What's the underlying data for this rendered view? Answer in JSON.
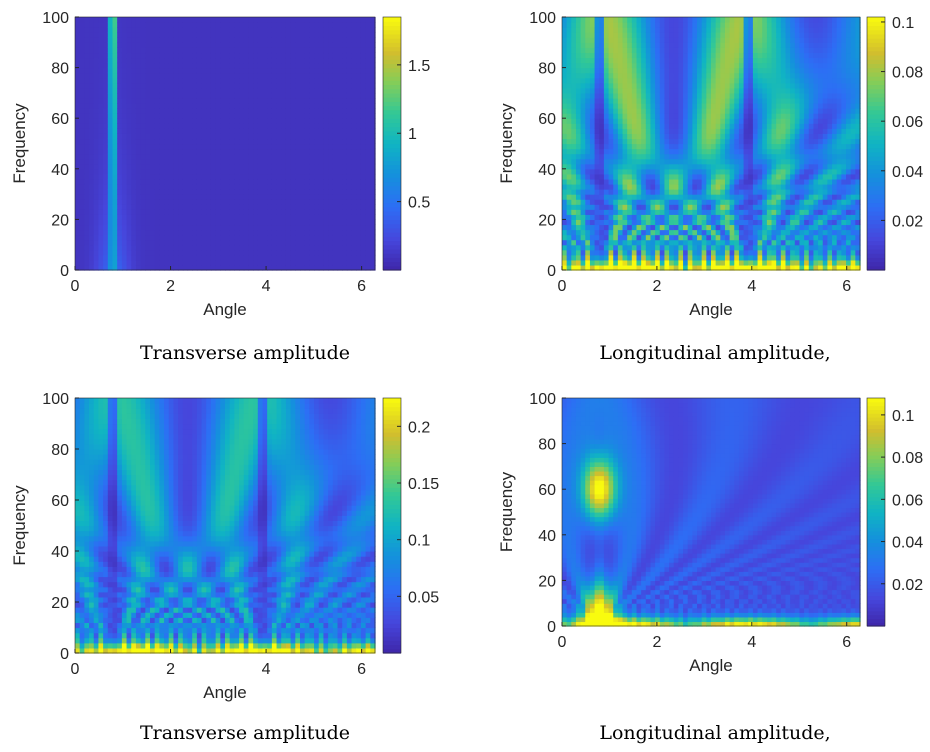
{
  "chart_data": [
    {
      "type": "heatmap",
      "caption": "Transverse amplitude",
      "xlabel": "Angle",
      "ylabel": "Frequency",
      "xlim": [
        0,
        6.28
      ],
      "ylim": [
        0,
        100
      ],
      "xticks": [
        0,
        2,
        4,
        6
      ],
      "yticks": [
        0,
        20,
        40,
        60,
        80,
        100
      ],
      "colorbar": {
        "min": 0,
        "max": 1.85,
        "ticks": [
          0.5,
          1,
          1.5
        ],
        "tick_labels": [
          "0.5",
          "1",
          "1.5"
        ]
      },
      "colormap": "parula",
      "features": {
        "vertical_ridges": [
          {
            "angle": 0.79,
            "peak": 1.85,
            "width": 0.06
          }
        ],
        "base_level": 0.08,
        "fan_strength": 0.25
      }
    },
    {
      "type": "heatmap",
      "caption": "Longitudinal amplitude,",
      "xlabel": "Angle",
      "ylabel": "Frequency",
      "xlim": [
        0,
        6.28
      ],
      "ylim": [
        0,
        100
      ],
      "xticks": [
        0,
        2,
        4,
        6
      ],
      "yticks": [
        0,
        20,
        40,
        60,
        80,
        100
      ],
      "colorbar": {
        "min": 0,
        "max": 0.102,
        "ticks": [
          0.02,
          0.04,
          0.06,
          0.08,
          0.1
        ],
        "tick_labels": [
          "0.02",
          "0.04",
          "0.06",
          "0.08",
          "0.1"
        ]
      },
      "colormap": "parula",
      "features": {
        "dark_columns": [
          0.79,
          3.93
        ],
        "fan_centers": [
          0.79,
          3.93
        ],
        "low_frequency_band_peak": 0.1,
        "fan_strength": 0.85
      }
    },
    {
      "type": "heatmap",
      "caption": "Transverse amplitude",
      "xlabel": "Angle",
      "ylabel": "Frequency",
      "xlim": [
        0,
        6.28
      ],
      "ylim": [
        0,
        100
      ],
      "xticks": [
        0,
        2,
        4,
        6
      ],
      "yticks": [
        0,
        20,
        40,
        60,
        80,
        100
      ],
      "colorbar": {
        "min": 0,
        "max": 0.225,
        "ticks": [
          0.05,
          0.1,
          0.15,
          0.2
        ],
        "tick_labels": [
          "0.05",
          "0.1",
          "0.15",
          "0.2"
        ]
      },
      "colormap": "parula",
      "features": {
        "dark_columns": [
          0.79,
          3.93
        ],
        "fan_centers": [
          0.79,
          3.93
        ],
        "low_frequency_band_peak": 0.22,
        "fan_strength": 0.6
      }
    },
    {
      "type": "heatmap",
      "caption": "Longitudinal amplitude,",
      "xlabel": "Angle",
      "ylabel": "Frequency",
      "xlim": [
        0,
        6.28
      ],
      "ylim": [
        0,
        100
      ],
      "xticks": [
        0,
        2,
        4,
        6
      ],
      "yticks": [
        0,
        20,
        40,
        60,
        80,
        100
      ],
      "colorbar": {
        "min": 0,
        "max": 0.108,
        "ticks": [
          0.02,
          0.04,
          0.06,
          0.08,
          0.1
        ],
        "tick_labels": [
          "0.02",
          "0.04",
          "0.06",
          "0.08",
          "0.1"
        ]
      },
      "colormap": "parula",
      "features": {
        "hot_spots": [
          {
            "angle": 0.79,
            "frequency": 60,
            "value": 0.1
          },
          {
            "angle": 0.79,
            "frequency": 5,
            "value": 0.105
          }
        ],
        "fan_centers": [
          0.79
        ],
        "low_frequency_band_peak": 0.06,
        "fan_strength": 0.35
      }
    }
  ]
}
